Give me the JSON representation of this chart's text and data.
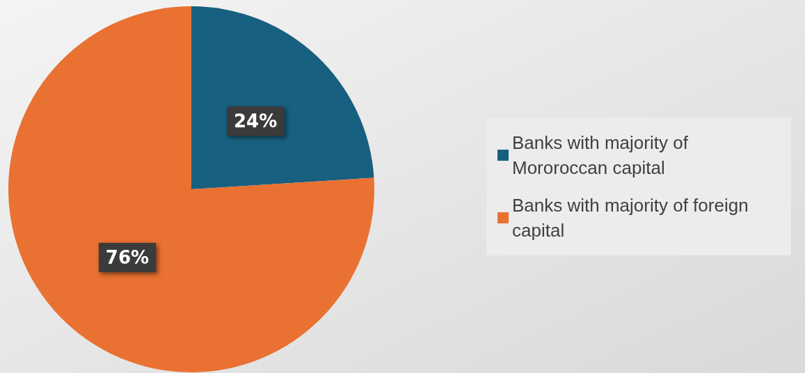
{
  "chart_data": {
    "type": "pie",
    "categories": [
      "Banks with majority of Mororoccan capital",
      "Banks with majority of foreign capital"
    ],
    "values": [
      24,
      76
    ],
    "colors": [
      "#17607f",
      "#e97132"
    ],
    "value_labels": [
      "24%",
      "76%"
    ],
    "legend": "right"
  }
}
